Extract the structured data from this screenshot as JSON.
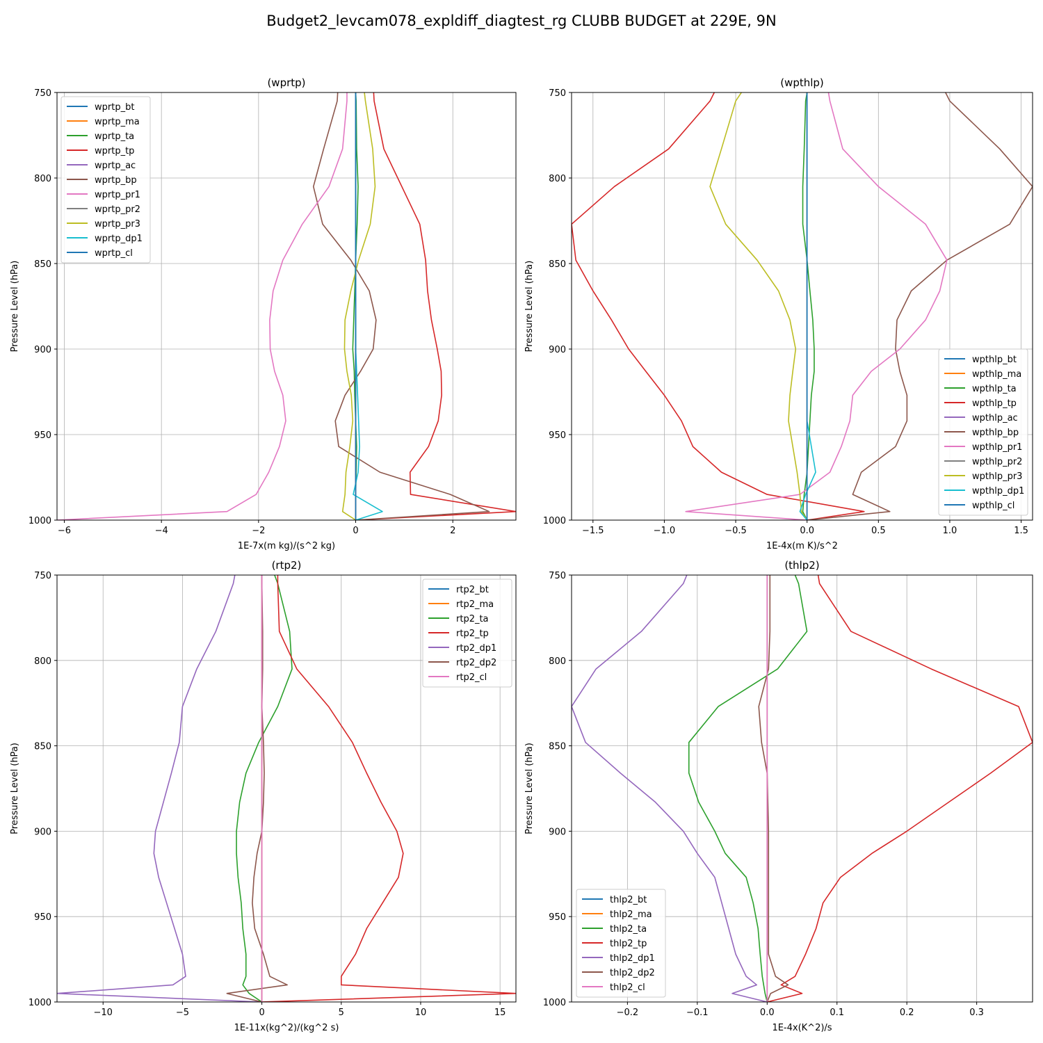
{
  "figure": {
    "title": "Budget2_levcam078_expldiff_diagtest_rg CLUBB BUDGET at 229E, 9N"
  },
  "colors": [
    "#1f77b4",
    "#ff7f0e",
    "#2ca02c",
    "#d62728",
    "#9467bd",
    "#8c564b",
    "#e377c2",
    "#7f7f7f",
    "#bcbd22",
    "#17becf",
    "#1f77b4"
  ],
  "chart_data": [
    {
      "type": "line",
      "title": "(wprtp)",
      "xlabel": "1E-7x(m kg)/(s^2 kg)",
      "ylabel": "Pressure Level (hPa)",
      "xlim": [
        -6.15,
        3.3
      ],
      "ylim": [
        1000,
        750
      ],
      "xticks": [
        -6,
        -4,
        -2,
        0,
        2
      ],
      "xticklabels": [
        "−6",
        "−4",
        "−2",
        "0",
        "2"
      ],
      "yticks": [
        750,
        800,
        850,
        900,
        950,
        1000
      ],
      "yticklabels": [
        "750",
        "800",
        "850",
        "900",
        "950",
        "1000"
      ],
      "legend_loc": "upper-left",
      "y": [
        750,
        755,
        783,
        805,
        827,
        848,
        866,
        883,
        900,
        913,
        927,
        942,
        957,
        972,
        985,
        995,
        1000
      ],
      "series": [
        {
          "name": "wprtp_bt",
          "color_index": 0,
          "values": [
            0,
            0,
            0,
            0,
            0,
            0,
            0,
            0,
            0,
            0,
            0,
            0,
            0,
            0,
            0,
            0,
            0
          ]
        },
        {
          "name": "wprtp_ma",
          "color_index": 1,
          "values": [
            0,
            0,
            0,
            0,
            0,
            0,
            0,
            0,
            0,
            0,
            0,
            0,
            0,
            0,
            0,
            0,
            0
          ]
        },
        {
          "name": "wprtp_ta",
          "color_index": 2,
          "values": [
            0,
            0.01,
            0.02,
            0.05,
            0.03,
            0,
            -0.02,
            -0.04,
            -0.06,
            -0.03,
            -0.02,
            0,
            0.02,
            0.01,
            0,
            0,
            0
          ]
        },
        {
          "name": "wprtp_tp",
          "color_index": 3,
          "values": [
            0.37,
            0.38,
            0.58,
            0.95,
            1.32,
            1.44,
            1.48,
            1.56,
            1.68,
            1.76,
            1.77,
            1.7,
            1.5,
            1.12,
            1.13,
            3.3,
            0
          ]
        },
        {
          "name": "wprtp_ac",
          "color_index": 4,
          "values": [
            0,
            0,
            0,
            0,
            0,
            0,
            0,
            0,
            0,
            0,
            0,
            0,
            0,
            0,
            0,
            0,
            0
          ]
        },
        {
          "name": "wprtp_bp",
          "color_index": 5,
          "values": [
            -0.37,
            -0.38,
            -0.66,
            -0.87,
            -0.68,
            -0.1,
            0.28,
            0.42,
            0.36,
            0.1,
            -0.22,
            -0.42,
            -0.35,
            0.5,
            1.95,
            2.75,
            0
          ]
        },
        {
          "name": "wprtp_pr1",
          "color_index": 6,
          "values": [
            -0.18,
            -0.18,
            -0.27,
            -0.55,
            -1.1,
            -1.5,
            -1.7,
            -1.77,
            -1.76,
            -1.67,
            -1.5,
            -1.44,
            -1.57,
            -1.79,
            -2.05,
            -2.65,
            -6.15
          ]
        },
        {
          "name": "wprtp_pr2",
          "color_index": 7,
          "values": [
            0,
            0,
            0,
            0,
            0,
            0,
            0,
            0,
            0,
            0,
            0,
            0,
            0,
            0,
            0,
            0,
            0
          ]
        },
        {
          "name": "wprtp_pr3",
          "color_index": 8,
          "values": [
            0.18,
            0.2,
            0.35,
            0.4,
            0.3,
            0.06,
            -0.1,
            -0.22,
            -0.23,
            -0.18,
            -0.09,
            -0.06,
            -0.12,
            -0.2,
            -0.22,
            -0.27,
            0
          ]
        },
        {
          "name": "wprtp_dp1",
          "color_index": 9,
          "values": [
            0,
            0,
            0,
            0,
            0,
            0,
            0,
            0,
            0,
            0.02,
            0.04,
            0.06,
            0.08,
            0.05,
            -0.05,
            0.55,
            0
          ]
        },
        {
          "name": "wprtp_cl",
          "color_index": 10,
          "values": [
            0,
            0,
            0,
            0,
            0,
            0,
            0,
            0,
            0,
            0,
            0,
            0,
            0,
            0,
            0,
            0,
            0
          ]
        }
      ]
    },
    {
      "type": "line",
      "title": "(wpthlp)",
      "xlabel": "1E-4x(m K)/s^2",
      "ylabel": "Pressure Level (hPa)",
      "xlim": [
        -1.65,
        1.58
      ],
      "ylim": [
        1000,
        750
      ],
      "xticks": [
        -1.5,
        -1.0,
        -0.5,
        0.0,
        0.5,
        1.0,
        1.5
      ],
      "xticklabels": [
        "−1.5",
        "−1.0",
        "−0.5",
        "0.0",
        "0.5",
        "1.0",
        "1.5"
      ],
      "yticks": [
        750,
        800,
        850,
        900,
        950,
        1000
      ],
      "yticklabels": [
        "750",
        "800",
        "850",
        "900",
        "950",
        "1000"
      ],
      "legend_loc": "lower-right",
      "y": [
        750,
        755,
        783,
        805,
        827,
        848,
        866,
        883,
        900,
        913,
        927,
        942,
        957,
        972,
        985,
        995,
        1000
      ],
      "series": [
        {
          "name": "wpthlp_bt",
          "color_index": 0,
          "values": [
            0,
            0,
            0,
            0,
            0,
            0,
            0,
            0,
            0,
            0,
            0,
            0,
            0,
            0,
            0,
            0,
            0
          ]
        },
        {
          "name": "wpthlp_ma",
          "color_index": 1,
          "values": [
            0,
            0,
            0,
            0,
            0,
            0,
            0,
            0,
            0,
            0,
            0,
            0,
            0,
            0,
            0,
            0,
            0
          ]
        },
        {
          "name": "wpthlp_ta",
          "color_index": 2,
          "values": [
            0,
            -0.01,
            -0.02,
            -0.03,
            -0.03,
            0,
            0.02,
            0.04,
            0.05,
            0.05,
            0.03,
            0.02,
            0.01,
            0,
            -0.02,
            -0.03,
            0
          ]
        },
        {
          "name": "wpthlp_tp",
          "color_index": 3,
          "values": [
            -0.65,
            -0.68,
            -0.97,
            -1.35,
            -1.65,
            -1.62,
            -1.5,
            -1.37,
            -1.25,
            -1.13,
            -1.0,
            -0.88,
            -0.8,
            -0.6,
            -0.28,
            0.4,
            0
          ]
        },
        {
          "name": "wpthlp_ac",
          "color_index": 4,
          "values": [
            0,
            0,
            0,
            0,
            0,
            0,
            0,
            0,
            0,
            0,
            0,
            0,
            0,
            0,
            0,
            0,
            0
          ]
        },
        {
          "name": "wpthlp_bp",
          "color_index": 5,
          "values": [
            0.97,
            1.0,
            1.35,
            1.58,
            1.42,
            0.98,
            0.73,
            0.63,
            0.62,
            0.65,
            0.7,
            0.7,
            0.62,
            0.38,
            0.32,
            0.58,
            0
          ]
        },
        {
          "name": "wpthlp_pr1",
          "color_index": 6,
          "values": [
            0.15,
            0.16,
            0.25,
            0.5,
            0.83,
            0.98,
            0.93,
            0.83,
            0.65,
            0.45,
            0.32,
            0.3,
            0.24,
            0.16,
            -0.05,
            -0.85,
            0
          ]
        },
        {
          "name": "wpthlp_pr2",
          "color_index": 7,
          "values": [
            0,
            0,
            0,
            0,
            0,
            0,
            0,
            0,
            0,
            0,
            0,
            0,
            0,
            0,
            0,
            0,
            0
          ]
        },
        {
          "name": "wpthlp_pr3",
          "color_index": 8,
          "values": [
            -0.46,
            -0.5,
            -0.6,
            -0.68,
            -0.57,
            -0.35,
            -0.2,
            -0.12,
            -0.08,
            -0.1,
            -0.12,
            -0.13,
            -0.1,
            -0.07,
            -0.05,
            -0.04,
            0
          ]
        },
        {
          "name": "wpthlp_dp1",
          "color_index": 9,
          "values": [
            0,
            0,
            0,
            0,
            0,
            0,
            0,
            0,
            0,
            0,
            0,
            0,
            0.03,
            0.06,
            -0.01,
            -0.05,
            0
          ]
        },
        {
          "name": "wpthlp_cl",
          "color_index": 10,
          "values": [
            0,
            0,
            0,
            0,
            0,
            0,
            0,
            0,
            0,
            0,
            0,
            0,
            0,
            0,
            0,
            0,
            0
          ]
        }
      ]
    },
    {
      "type": "line",
      "title": "(rtp2)",
      "xlabel": "1E-11x(kg^2)/(kg^2 s)",
      "ylabel": "Pressure Level (hPa)",
      "xlim": [
        -12.9,
        16.0
      ],
      "ylim": [
        1000,
        750
      ],
      "xticks": [
        -10,
        -5,
        0,
        5,
        10,
        15
      ],
      "xticklabels": [
        "−10",
        "−5",
        "0",
        "5",
        "10",
        "15"
      ],
      "yticks": [
        750,
        800,
        850,
        900,
        950,
        1000
      ],
      "yticklabels": [
        "750",
        "800",
        "850",
        "900",
        "950",
        "1000"
      ],
      "legend_loc": "upper-right",
      "y": [
        750,
        755,
        783,
        805,
        827,
        848,
        866,
        883,
        900,
        913,
        927,
        942,
        957,
        972,
        985,
        990,
        995,
        1000
      ],
      "series": [
        {
          "name": "rtp2_bt",
          "color_index": 0,
          "values": [
            0,
            0,
            0,
            0,
            0,
            0,
            0,
            0,
            0,
            0,
            0,
            0,
            0,
            0,
            0,
            0,
            0,
            0
          ]
        },
        {
          "name": "rtp2_ma",
          "color_index": 1,
          "values": [
            0,
            0,
            0,
            0,
            0,
            0,
            0,
            0,
            0,
            0,
            0,
            0,
            0,
            0,
            0,
            0,
            0,
            0
          ]
        },
        {
          "name": "rtp2_ta",
          "color_index": 2,
          "values": [
            0.8,
            1.0,
            1.75,
            1.9,
            1.0,
            -0.2,
            -1.0,
            -1.4,
            -1.6,
            -1.6,
            -1.5,
            -1.3,
            -1.2,
            -1.0,
            -1.0,
            -1.2,
            -0.8,
            0
          ]
        },
        {
          "name": "rtp2_tp",
          "color_index": 3,
          "values": [
            1.0,
            1.0,
            1.1,
            2.2,
            4.2,
            5.7,
            6.6,
            7.5,
            8.5,
            8.9,
            8.6,
            7.6,
            6.6,
            5.9,
            5.0,
            5.0,
            16.0,
            -0.05
          ]
        },
        {
          "name": "rtp2_dp1",
          "color_index": 4,
          "values": [
            -1.7,
            -1.8,
            -2.9,
            -4.1,
            -5.0,
            -5.2,
            -5.7,
            -6.2,
            -6.7,
            -6.8,
            -6.5,
            -6.0,
            -5.5,
            -5.0,
            -4.8,
            -5.6,
            -12.9,
            0
          ]
        },
        {
          "name": "rtp2_dp2",
          "color_index": 5,
          "values": [
            0,
            0,
            0.05,
            0.05,
            0,
            0.1,
            0.15,
            0.1,
            0,
            -0.3,
            -0.5,
            -0.6,
            -0.45,
            0.1,
            0.5,
            1.6,
            -2.2,
            0
          ]
        },
        {
          "name": "rtp2_cl",
          "color_index": 6,
          "values": [
            0,
            0,
            0,
            0,
            0,
            0,
            0,
            0,
            0,
            0,
            0,
            0,
            0,
            0,
            0,
            0,
            0,
            0
          ]
        }
      ]
    },
    {
      "type": "line",
      "title": "(thlp2)",
      "xlabel": "1E-4x(K^2)/s",
      "ylabel": "Pressure Level (hPa)",
      "xlim": [
        -0.28,
        0.38
      ],
      "ylim": [
        1000,
        750
      ],
      "xticks": [
        -0.2,
        -0.1,
        0.0,
        0.1,
        0.2,
        0.3
      ],
      "xticklabels": [
        "−0.2",
        "−0.1",
        "0.0",
        "0.1",
        "0.2",
        "0.3"
      ],
      "yticks": [
        750,
        800,
        850,
        900,
        950,
        1000
      ],
      "yticklabels": [
        "750",
        "800",
        "850",
        "900",
        "950",
        "1000"
      ],
      "legend_loc": "lower-left",
      "y": [
        750,
        755,
        783,
        805,
        827,
        848,
        866,
        883,
        900,
        913,
        927,
        942,
        957,
        972,
        985,
        990,
        995,
        1000
      ],
      "series": [
        {
          "name": "thlp2_bt",
          "color_index": 0,
          "values": [
            0,
            0,
            0,
            0,
            0,
            0,
            0,
            0,
            0,
            0,
            0,
            0,
            0,
            0,
            0,
            0,
            0,
            0
          ]
        },
        {
          "name": "thlp2_ma",
          "color_index": 1,
          "values": [
            0,
            0,
            0,
            0,
            0,
            0,
            0,
            0,
            0,
            0,
            0,
            0,
            0,
            0,
            0,
            0,
            0,
            0
          ]
        },
        {
          "name": "thlp2_ta",
          "color_index": 2,
          "values": [
            0.04,
            0.045,
            0.057,
            0.015,
            -0.07,
            -0.112,
            -0.112,
            -0.098,
            -0.075,
            -0.06,
            -0.03,
            -0.02,
            -0.013,
            -0.01,
            -0.007,
            -0.005,
            -0.003,
            0
          ]
        },
        {
          "name": "thlp2_tp",
          "color_index": 3,
          "values": [
            0.073,
            0.075,
            0.12,
            0.235,
            0.36,
            0.38,
            0.32,
            0.26,
            0.2,
            0.15,
            0.105,
            0.08,
            0.07,
            0.055,
            0.04,
            0.02,
            0.05,
            0
          ]
        },
        {
          "name": "thlp2_dp1",
          "color_index": 4,
          "values": [
            -0.115,
            -0.12,
            -0.18,
            -0.245,
            -0.28,
            -0.26,
            -0.21,
            -0.16,
            -0.12,
            -0.1,
            -0.075,
            -0.065,
            -0.055,
            -0.045,
            -0.03,
            -0.015,
            -0.05,
            0
          ]
        },
        {
          "name": "thlp2_dp2",
          "color_index": 5,
          "values": [
            0.004,
            0.004,
            0.004,
            0.002,
            -0.012,
            -0.008,
            0,
            0.001,
            0.002,
            0.002,
            0.002,
            0.002,
            0.002,
            0.002,
            0.012,
            0.03,
            0.005,
            0
          ]
        },
        {
          "name": "thlp2_cl",
          "color_index": 6,
          "values": [
            0,
            0,
            0,
            0,
            0,
            0,
            0,
            0,
            0,
            0,
            0,
            0,
            0,
            0,
            0,
            0,
            0,
            0
          ]
        }
      ]
    }
  ]
}
